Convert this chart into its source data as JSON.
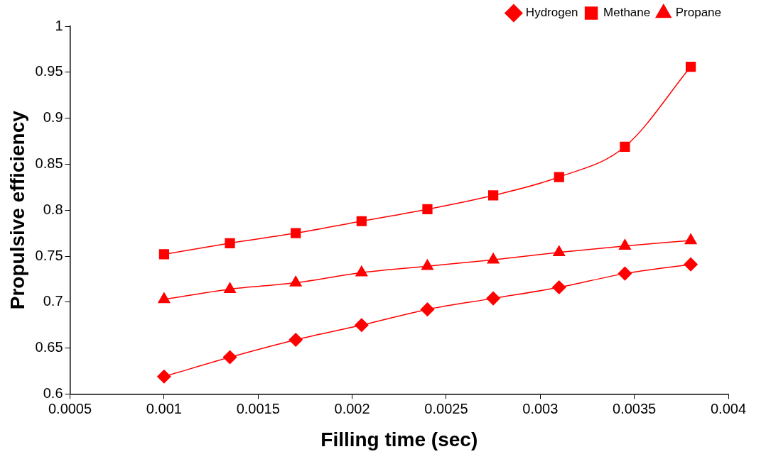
{
  "chart_data": {
    "type": "line",
    "xlabel": "Filling time (sec)",
    "ylabel": "Propulsive efficiency",
    "x": [
      0.001,
      0.00135,
      0.0017,
      0.00205,
      0.0024,
      0.00275,
      0.0031,
      0.00345,
      0.0038
    ],
    "series": [
      {
        "name": "Hydrogen",
        "color": "#ff0000",
        "marker": "diamond",
        "values": [
          0.619,
          0.64,
          0.659,
          0.675,
          0.692,
          0.704,
          0.716,
          0.731,
          0.741
        ]
      },
      {
        "name": "Methane",
        "color": "#ff0000",
        "marker": "square",
        "values": [
          0.752,
          0.764,
          0.775,
          0.788,
          0.801,
          0.816,
          0.836,
          0.869,
          0.956
        ]
      },
      {
        "name": "Propane",
        "color": "#ff0000",
        "marker": "triangle",
        "values": [
          0.703,
          0.714,
          0.721,
          0.732,
          0.739,
          0.746,
          0.754,
          0.761,
          0.767
        ]
      }
    ],
    "xlim": [
      0.0005,
      0.004
    ],
    "xticks": [
      0.0005,
      0.001,
      0.0015,
      0.002,
      0.0025,
      0.003,
      0.0035,
      0.004
    ],
    "ylim": [
      0.6,
      1
    ],
    "yticks": [
      0.6,
      0.65,
      0.7,
      0.75,
      0.8,
      0.85,
      0.9,
      0.95,
      1
    ],
    "grid": false,
    "legend": "top right",
    "line_style": "solid"
  }
}
